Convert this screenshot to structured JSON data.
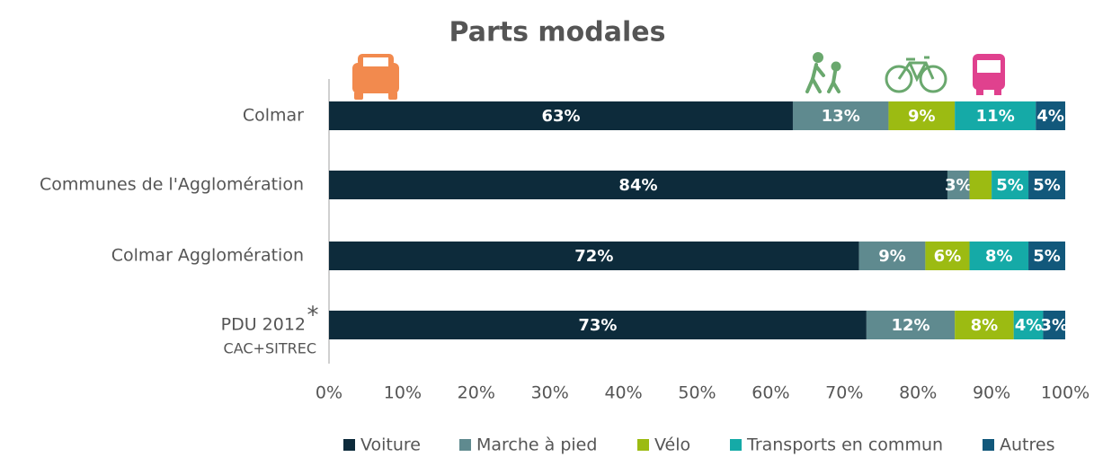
{
  "chart_data": {
    "type": "stacked_bar_horizontal",
    "title": "Parts modales",
    "categories": [
      "Colmar",
      "Communes de l'Agglomération",
      "Colmar Agglomération",
      "PDU 2012"
    ],
    "annotations": [
      {
        "text": "*"
      },
      {
        "text": "CAC+SITREC"
      }
    ],
    "series": [
      {
        "name": "Voiture",
        "color": "#0d2b3b",
        "values": [
          63,
          84,
          72,
          73
        ],
        "value_labels": [
          "63%",
          "84%",
          "72%",
          "73%"
        ]
      },
      {
        "name": "Marche à pied",
        "color": "#5f8a8f",
        "values": [
          13,
          3,
          9,
          12
        ],
        "value_labels": [
          "13%",
          "3%",
          "9%",
          "12%"
        ]
      },
      {
        "name": "Vélo",
        "color": "#9cbb12",
        "values": [
          9,
          3,
          6,
          8
        ],
        "value_labels": [
          "9%",
          null,
          "6%",
          "8%"
        ]
      },
      {
        "name": "Transports en commun",
        "color": "#15aaa7",
        "values": [
          11,
          5,
          8,
          4
        ],
        "value_labels": [
          "11%",
          "5%",
          "8%",
          "4%"
        ]
      },
      {
        "name": "Autres",
        "color": "#12587b",
        "values": [
          4,
          5,
          5,
          3
        ],
        "value_labels": [
          "4%",
          "5%",
          "5%",
          "3%"
        ]
      }
    ],
    "xlim": [
      0,
      100
    ],
    "xticks": [
      {
        "value": 0,
        "label": "0%"
      },
      {
        "value": 10,
        "label": "10%"
      },
      {
        "value": 20,
        "label": "20%"
      },
      {
        "value": 30,
        "label": "30%"
      },
      {
        "value": 40,
        "label": "40%"
      },
      {
        "value": 50,
        "label": "50%"
      },
      {
        "value": 60,
        "label": "60%"
      },
      {
        "value": 70,
        "label": "70%"
      },
      {
        "value": 80,
        "label": "80%"
      },
      {
        "value": 90,
        "label": "90%"
      },
      {
        "value": 100,
        "label": "100%"
      }
    ],
    "legend": "bottom"
  }
}
